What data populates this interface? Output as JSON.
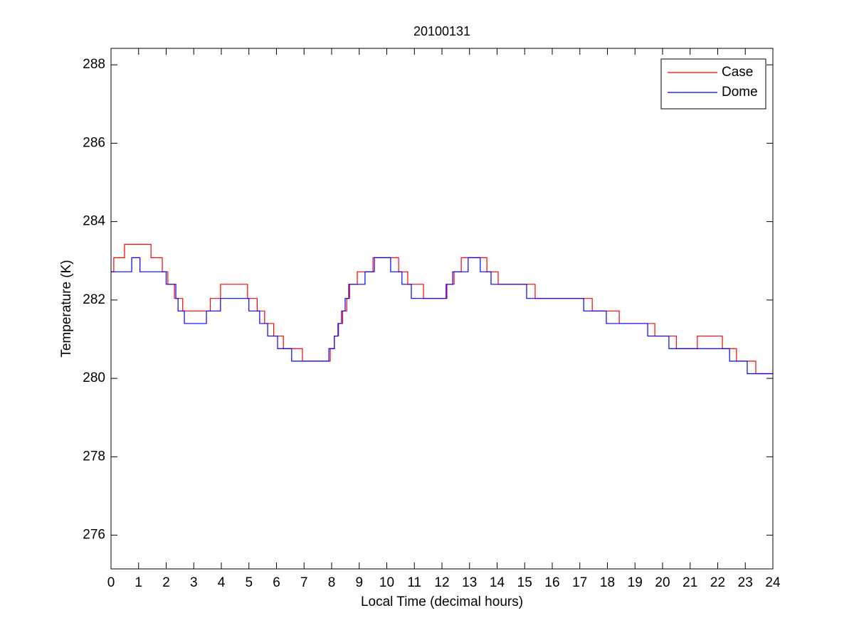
{
  "chart_data": {
    "type": "line",
    "title": "20100131",
    "xlabel": "Local Time (decimal hours)",
    "ylabel": "Temperature (K)",
    "xlim": [
      0,
      24
    ],
    "ylim": [
      275.14,
      288.42
    ],
    "xticks": [
      0,
      1,
      2,
      3,
      4,
      5,
      6,
      7,
      8,
      9,
      10,
      11,
      12,
      13,
      14,
      15,
      16,
      17,
      18,
      19,
      20,
      21,
      22,
      23,
      24
    ],
    "yticks": [
      276,
      278,
      280,
      282,
      284,
      286,
      288
    ],
    "grid": false,
    "legend": "northeast",
    "series": [
      {
        "name": "Case",
        "color": "#ff0000",
        "x": [
          0,
          0.1,
          0.1,
          0.49,
          0.49,
          1.45,
          1.45,
          1.86,
          1.86,
          2.06,
          2.06,
          2.3,
          2.3,
          2.6,
          2.6,
          3.6,
          3.6,
          3.97,
          3.97,
          4.95,
          4.95,
          5.3,
          5.3,
          5.57,
          5.57,
          5.9,
          5.9,
          6.25,
          6.25,
          6.94,
          6.94,
          7.95,
          7.95,
          8.1,
          8.1,
          8.25,
          8.25,
          8.4,
          8.4,
          8.55,
          8.55,
          8.65,
          8.65,
          8.93,
          8.93,
          9.5,
          9.5,
          10.43,
          10.43,
          10.76,
          10.76,
          11.33,
          11.33,
          12.18,
          12.18,
          12.44,
          12.44,
          12.7,
          12.7,
          13.63,
          13.63,
          14.04,
          14.04,
          15.38,
          15.38,
          17.45,
          17.45,
          18.43,
          18.43,
          19.72,
          19.72,
          20.5,
          20.5,
          21.26,
          21.26,
          22.17,
          22.17,
          22.68,
          22.68,
          23.38,
          23.38,
          24
        ],
        "values": [
          282.72,
          282.72,
          283.08,
          283.08,
          283.42,
          283.42,
          283.08,
          283.08,
          282.72,
          282.72,
          282.4,
          282.4,
          282.04,
          282.04,
          281.72,
          281.72,
          282.04,
          282.04,
          282.4,
          282.4,
          282.04,
          282.04,
          281.72,
          281.72,
          281.4,
          281.4,
          281.08,
          281.08,
          280.76,
          280.76,
          280.44,
          280.44,
          280.76,
          280.76,
          281.08,
          281.08,
          281.4,
          281.4,
          281.72,
          281.72,
          282.04,
          282.04,
          282.4,
          282.4,
          282.72,
          282.72,
          283.08,
          283.08,
          282.72,
          282.72,
          282.4,
          282.4,
          282.04,
          282.04,
          282.4,
          282.4,
          282.72,
          282.72,
          283.08,
          283.08,
          282.72,
          282.72,
          282.4,
          282.4,
          282.04,
          282.04,
          281.72,
          281.72,
          281.4,
          281.4,
          281.08,
          281.08,
          280.76,
          280.76,
          281.08,
          281.08,
          280.76,
          280.76,
          280.44,
          280.44,
          280.12,
          280.12
        ]
      },
      {
        "name": "Dome",
        "color": "#0000ff",
        "x": [
          0,
          0.75,
          0.75,
          1.05,
          1.05,
          2.0,
          2.0,
          2.35,
          2.35,
          2.43,
          2.43,
          2.66,
          2.66,
          3.46,
          3.46,
          3.97,
          3.97,
          5.0,
          5.0,
          5.39,
          5.39,
          5.68,
          5.68,
          6.04,
          6.04,
          6.55,
          6.55,
          7.9,
          7.9,
          8.1,
          8.1,
          8.23,
          8.23,
          8.36,
          8.36,
          8.49,
          8.49,
          8.62,
          8.62,
          9.21,
          9.21,
          9.55,
          9.55,
          10.14,
          10.14,
          10.55,
          10.55,
          10.89,
          10.89,
          12.15,
          12.15,
          12.39,
          12.39,
          12.95,
          12.95,
          13.39,
          13.39,
          13.78,
          13.78,
          15.07,
          15.07,
          17.14,
          17.14,
          17.96,
          17.96,
          19.46,
          19.46,
          20.23,
          20.23,
          22.43,
          22.43,
          23.07,
          23.07,
          24
        ],
        "values": [
          282.72,
          282.72,
          283.08,
          283.08,
          282.72,
          282.72,
          282.4,
          282.4,
          282.04,
          282.04,
          281.72,
          281.72,
          281.4,
          281.4,
          281.72,
          281.72,
          282.04,
          282.04,
          281.72,
          281.72,
          281.4,
          281.4,
          281.08,
          281.08,
          280.76,
          280.76,
          280.44,
          280.44,
          280.76,
          280.76,
          281.08,
          281.08,
          281.4,
          281.4,
          281.72,
          281.72,
          282.04,
          282.04,
          282.4,
          282.4,
          282.72,
          282.72,
          283.08,
          283.08,
          282.72,
          282.72,
          282.4,
          282.4,
          282.04,
          282.04,
          282.4,
          282.4,
          282.72,
          282.72,
          283.08,
          283.08,
          282.72,
          282.72,
          282.4,
          282.4,
          282.04,
          282.04,
          281.72,
          281.72,
          281.4,
          281.4,
          281.08,
          281.08,
          280.76,
          280.76,
          280.44,
          280.44,
          280.12,
          280.12
        ]
      }
    ]
  }
}
